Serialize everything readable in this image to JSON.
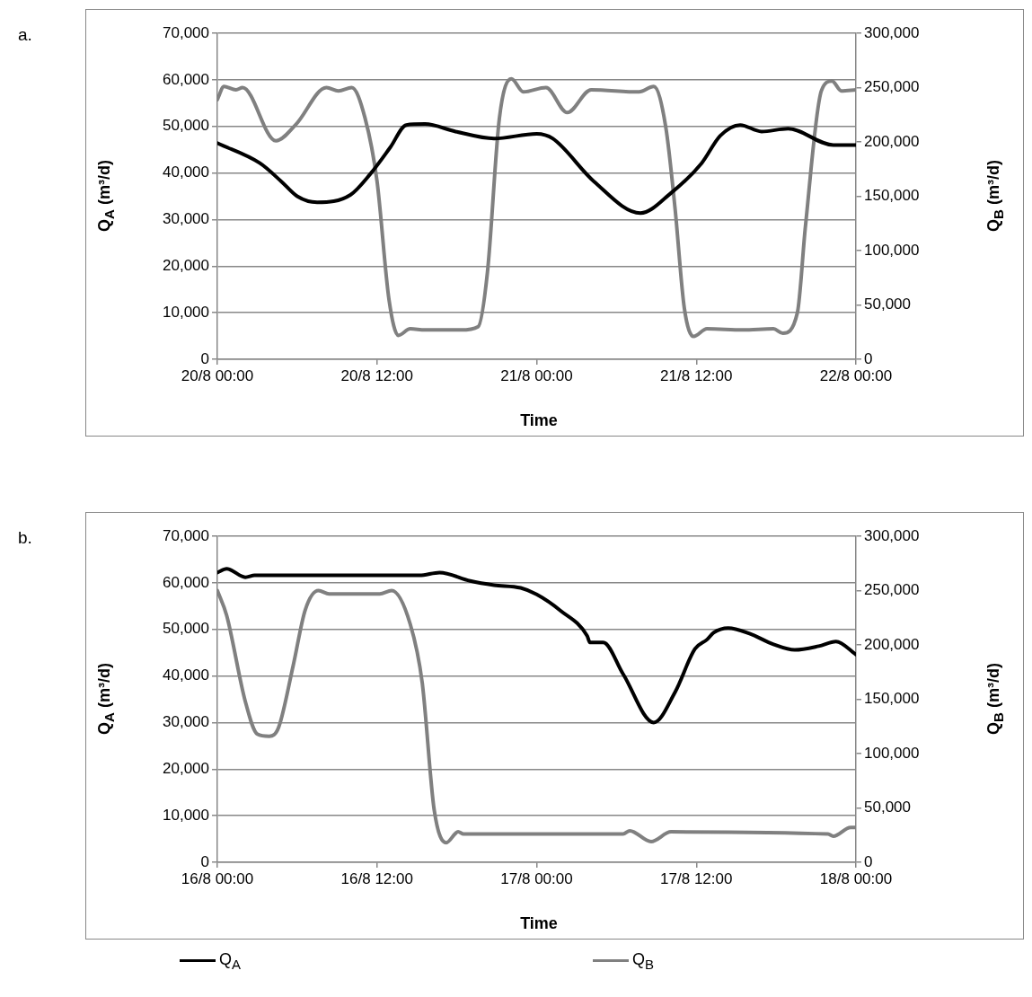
{
  "chart_data": [
    {
      "type": "line",
      "xlabel": "Time",
      "ylabel": "Q$_{A}$ (m³/d)",
      "y2label": "Q$_{B}$ (m³/d)",
      "annotations": [
        "a."
      ],
      "grid": "y",
      "marker": "none",
      "line_style": "solid",
      "xlim": [
        "--08-20T00:00",
        "--08-22T00:00"
      ],
      "xticks": [
        {
          "value": "--08-20T00:00",
          "label": "20/8 00:00"
        },
        {
          "value": "--08-20T12:00",
          "label": "20/8 12:00"
        },
        {
          "value": "--08-21T00:00",
          "label": "21/8 00:00"
        },
        {
          "value": "--08-21T12:00",
          "label": "21/8 12:00"
        },
        {
          "value": "--08-22T00:00",
          "label": "22/8 00:00"
        }
      ],
      "ylim": [
        0,
        70000
      ],
      "yticks": [
        0,
        {
          "value": 10000,
          "label": "10,000"
        },
        {
          "value": 20000,
          "label": "20,000"
        },
        {
          "value": 30000,
          "label": "30,000"
        },
        {
          "value": 40000,
          "label": "40,000"
        },
        {
          "value": 50000,
          "label": "50,000"
        },
        {
          "value": 60000,
          "label": "60,000"
        },
        {
          "value": 70000,
          "label": "70,000"
        }
      ],
      "y2lim": [
        0,
        300000
      ],
      "y2ticks": [
        0,
        {
          "value": 50000,
          "label": "50,000"
        },
        {
          "value": 100000,
          "label": "100,000"
        },
        {
          "value": 150000,
          "label": "150,000"
        },
        {
          "value": 200000,
          "label": "200,000"
        },
        {
          "value": 250000,
          "label": "250,000"
        },
        {
          "value": 300000,
          "label": "300,000"
        }
      ],
      "series": [
        {
          "color": "#000000",
          "x": [
            "--08-20T00:00",
            "--08-20T03:12",
            "--08-20T04:48",
            "--08-20T06:00",
            "--08-20T07:30",
            "--08-20T10:00",
            "--08-20T11:30",
            "--08-20T13:00",
            "--08-20T14:12",
            "--08-20T15:36",
            "--08-20T17:54",
            "--08-20T20:48",
            "--08-21T00:00",
            "--08-21T01:12",
            "--08-21T04:18",
            "--08-21T07:48",
            "--08-21T10:06",
            "--08-21T12:24",
            "--08-21T13:48",
            "--08-21T15:18",
            "--08-21T16:54",
            "--08-21T18:54",
            "--08-21T22:18",
            "--08-22T00:00"
          ],
          "values": [
            46400,
            42100,
            38200,
            35000,
            33700,
            35300,
            39800,
            45500,
            50300,
            50500,
            48900,
            47400,
            48400,
            47400,
            38200,
            31400,
            35700,
            42100,
            48000,
            50300,
            48900,
            49500,
            46000,
            46000
          ]
        },
        {
          "color": "#808080",
          "axis": "y2",
          "x": [
            "--08-20T00:00",
            "--08-20T00:30",
            "--08-20T01:24",
            "--08-20T01:54",
            "--08-20T04:24",
            "--08-20T05:54",
            "--08-20T08:12",
            "--08-20T09:06",
            "--08-20T10:06",
            "--08-20T11:06",
            "--08-20T12:00",
            "--08-20T12:54",
            "--08-20T13:36",
            "--08-20T14:30",
            "--08-20T15:36",
            "--08-20T18:18",
            "--08-20T19:36",
            "--08-20T20:18",
            "--08-20T21:12",
            "--08-20T22:06",
            "--08-20T23:00",
            "--08-21T00:42",
            "--08-21T02:18",
            "--08-21T04:06",
            "--08-21T07:42",
            "--08-21T08:48",
            "--08-21T09:42",
            "--08-21T10:24",
            "--08-21T11:06",
            "--08-21T11:48",
            "--08-21T12:48",
            "--08-21T15:30",
            "--08-21T17:48",
            "--08-21T18:30",
            "--08-21T19:36",
            "--08-21T20:12",
            "--08-21T21:24",
            "--08-21T22:12",
            "--08-21T22:54",
            "--08-22T00:00"
          ],
          "values": [
            239000,
            251000,
            248000,
            250000,
            201000,
            216000,
            250000,
            247000,
            250000,
            222000,
            164000,
            55000,
            22000,
            28000,
            27000,
            27000,
            30000,
            80000,
            222000,
            258000,
            246000,
            250000,
            227000,
            248000,
            246000,
            251000,
            214000,
            139000,
            47000,
            21000,
            28000,
            27000,
            28000,
            24000,
            43000,
            122000,
            247000,
            256000,
            247000,
            248000
          ]
        }
      ]
    },
    {
      "type": "line",
      "xlabel": "Time",
      "ylabel": "Q$_{A}$ (m³/d)",
      "y2label": "Q$_{B}$ (m³/d)",
      "annotations": [
        "b."
      ],
      "grid": "y",
      "marker": "none",
      "line_style": "solid",
      "legend": "bottom",
      "xlim": [
        "--08-16T00:00",
        "--08-18T00:00"
      ],
      "xticks": [
        {
          "value": "--08-16T00:00",
          "label": "16/8 00:00"
        },
        {
          "value": "--08-16T12:00",
          "label": "16/8 12:00"
        },
        {
          "value": "--08-17T00:00",
          "label": "17/8 00:00"
        },
        {
          "value": "--08-17T12:00",
          "label": "17/8 12:00"
        },
        {
          "value": "--08-18T00:00",
          "label": "18/8 00:00"
        }
      ],
      "ylim": [
        0,
        70000
      ],
      "yticks": [
        0,
        {
          "value": 10000,
          "label": "10,000"
        },
        {
          "value": 20000,
          "label": "20,000"
        },
        {
          "value": 30000,
          "label": "30,000"
        },
        {
          "value": 40000,
          "label": "40,000"
        },
        {
          "value": 50000,
          "label": "50,000"
        },
        {
          "value": 60000,
          "label": "60,000"
        },
        {
          "value": 70000,
          "label": "70,000"
        }
      ],
      "y2lim": [
        0,
        300000
      ],
      "y2ticks": [
        0,
        {
          "value": 50000,
          "label": "50,000"
        },
        {
          "value": 100000,
          "label": "100,000"
        },
        {
          "value": 150000,
          "label": "150,000"
        },
        {
          "value": 200000,
          "label": "200,000"
        },
        {
          "value": 250000,
          "label": "250,000"
        },
        {
          "value": 300000,
          "label": "300,000"
        }
      ],
      "series": [
        {
          "name": "Q$_{A}$",
          "color": "#000000",
          "x": [
            "--08-16T00:00",
            "--08-16T00:42",
            "--08-16T02:06",
            "--08-16T02:48",
            "--08-16T15:12",
            "--08-16T16:42",
            "--08-16T19:00",
            "--08-16T20:48",
            "--08-16T22:48",
            "--08-17T00:00",
            "--08-17T01:48",
            "--08-17T03:48",
            "--08-17T04:00",
            "--08-17T05:00",
            "--08-17T06:30",
            "--08-17T08:48",
            "--08-17T10:24",
            "--08-17T11:54",
            "--08-17T12:48",
            "--08-17T13:18",
            "--08-17T14:24",
            "--08-17T16:00",
            "--08-17T17:48",
            "--08-17T19:24",
            "--08-17T21:12",
            "--08-17T22:30",
            "--08-18T00:00"
          ],
          "values": [
            62200,
            63000,
            61200,
            61600,
            61600,
            62200,
            60400,
            59500,
            58900,
            57500,
            54000,
            48600,
            47200,
            47200,
            40400,
            30000,
            36500,
            45800,
            47800,
            49300,
            50300,
            49100,
            46800,
            45600,
            46400,
            47400,
            44600
          ]
        },
        {
          "name": "Q$_{B}$",
          "color": "#808080",
          "axis": "y2",
          "x": [
            "--08-16T00:00",
            "--08-16T00:42",
            "--08-16T02:06",
            "--08-16T03:00",
            "--08-16T03:54",
            "--08-16T04:36",
            "--08-16T05:42",
            "--08-16T06:36",
            "--08-16T07:36",
            "--08-16T08:24",
            "--08-16T12:12",
            "--08-16T13:06",
            "--08-16T14:30",
            "--08-16T15:24",
            "--08-16T16:18",
            "--08-16T17:12",
            "--08-16T18:06",
            "--08-16T18:30",
            "--08-17T06:30",
            "--08-17T07:00",
            "--08-17T08:36",
            "--08-17T10:06",
            "--08-17T21:54",
            "--08-17T22:18",
            "--08-17T23:36",
            "--08-18T00:00"
          ],
          "values": [
            250000,
            227000,
            148000,
            118000,
            116000,
            124000,
            181000,
            232000,
            250000,
            247000,
            247000,
            250000,
            219000,
            165000,
            48000,
            18000,
            28000,
            26000,
            26000,
            29000,
            19000,
            28000,
            26000,
            24000,
            32000,
            32000
          ]
        }
      ]
    }
  ]
}
